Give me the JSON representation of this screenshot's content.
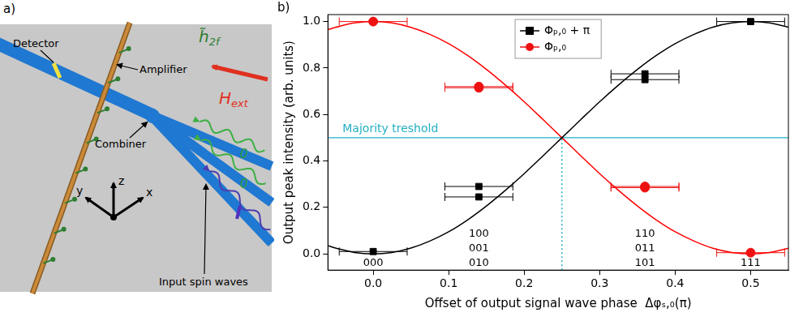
{
  "diagram": {
    "panel_label": "a)",
    "labels": {
      "detector": "Detector",
      "amplifier": "Amplifier",
      "combiner": "Combiner",
      "input": "Input spin waves",
      "field": "H",
      "field_sub": "ext",
      "rf": "h̃",
      "rf_sub": "2f",
      "axes": [
        "z",
        "y",
        "x"
      ],
      "bits": [
        "0",
        "0"
      ]
    }
  },
  "chart_data": {
    "type": "scatter",
    "panel_label": "b)",
    "xlabel": "Offset of output signal wave phase  Δφₛ,₀(π)",
    "ylabel": "Output peak intensity (arb. units)",
    "xlim": [
      -0.06,
      0.55
    ],
    "xticks": [
      {
        "value": 0,
        "label": "0.0"
      },
      0.1,
      0.2,
      0.3,
      0.4,
      0.5
    ],
    "ylim": [
      -0.07,
      1.03
    ],
    "yticks": [
      {
        "value": 0,
        "label": "0.0"
      },
      0.2,
      0.4,
      0.6,
      0.8,
      {
        "value": 1,
        "label": "1.0"
      }
    ],
    "grid": false,
    "legend": "top",
    "series": [
      {
        "name": "Φₚ,₀ + π",
        "color": "#000000",
        "marker": "square",
        "x": [
          0,
          0.14,
          0.14,
          0.36,
          0.36,
          0.5
        ],
        "values": [
          0.01,
          0.29,
          0.245,
          0.775,
          0.75,
          1.0
        ],
        "x_error": [
          0.045,
          0.045,
          0.045,
          0.045,
          0.045,
          0.045
        ]
      },
      {
        "name": "Φₚ,₀",
        "color": "#ee1111",
        "marker": "circle",
        "x": [
          0,
          0.14,
          0.14,
          0.36,
          0.36,
          0.5
        ],
        "values": [
          1.0,
          0.72,
          0.715,
          0.29,
          0.285,
          0.005
        ],
        "x_error": [
          0.045,
          0.045,
          0.045,
          0.045,
          0.045,
          0.045
        ]
      }
    ],
    "fits": [
      {
        "color": "#000000",
        "line_style": "solid",
        "x": [
          -0.06,
          -0.05,
          -0.025,
          0,
          0.025,
          0.05,
          0.075,
          0.1,
          0.125,
          0.15,
          0.175,
          0.2,
          0.225,
          0.25,
          0.275,
          0.3,
          0.325,
          0.35,
          0.375,
          0.4,
          0.425,
          0.45,
          0.475,
          0.5,
          0.525,
          0.55
        ],
        "values": [
          0.035,
          0.025,
          0.006,
          0,
          0.006,
          0.025,
          0.055,
          0.095,
          0.146,
          0.206,
          0.273,
          0.345,
          0.422,
          0.5,
          0.578,
          0.655,
          0.727,
          0.794,
          0.854,
          0.905,
          0.945,
          0.976,
          0.994,
          1,
          0.994,
          0.976
        ]
      },
      {
        "color": "#ff0000",
        "line_style": "solid",
        "x": [
          -0.06,
          -0.05,
          -0.025,
          0,
          0.025,
          0.05,
          0.075,
          0.1,
          0.125,
          0.15,
          0.175,
          0.2,
          0.225,
          0.25,
          0.275,
          0.3,
          0.325,
          0.35,
          0.375,
          0.4,
          0.425,
          0.45,
          0.475,
          0.5,
          0.525,
          0.55
        ],
        "values": [
          0.965,
          0.975,
          0.994,
          1,
          0.994,
          0.975,
          0.945,
          0.905,
          0.854,
          0.794,
          0.727,
          0.655,
          0.578,
          0.5,
          0.422,
          0.345,
          0.273,
          0.206,
          0.146,
          0.095,
          0.055,
          0.024,
          0.006,
          0,
          0.006,
          0.024
        ]
      }
    ],
    "threshold": {
      "label": "Majority treshold",
      "value": 0.5,
      "x": 0.25,
      "color": "#22b0c4"
    },
    "state_labels": [
      {
        "x": 0,
        "labels": [
          "000"
        ]
      },
      {
        "x": 0.14,
        "labels": [
          "100",
          "001",
          "010"
        ]
      },
      {
        "x": 0.36,
        "labels": [
          "110",
          "011",
          "101"
        ]
      },
      {
        "x": 0.5,
        "labels": [
          "111"
        ]
      }
    ]
  }
}
